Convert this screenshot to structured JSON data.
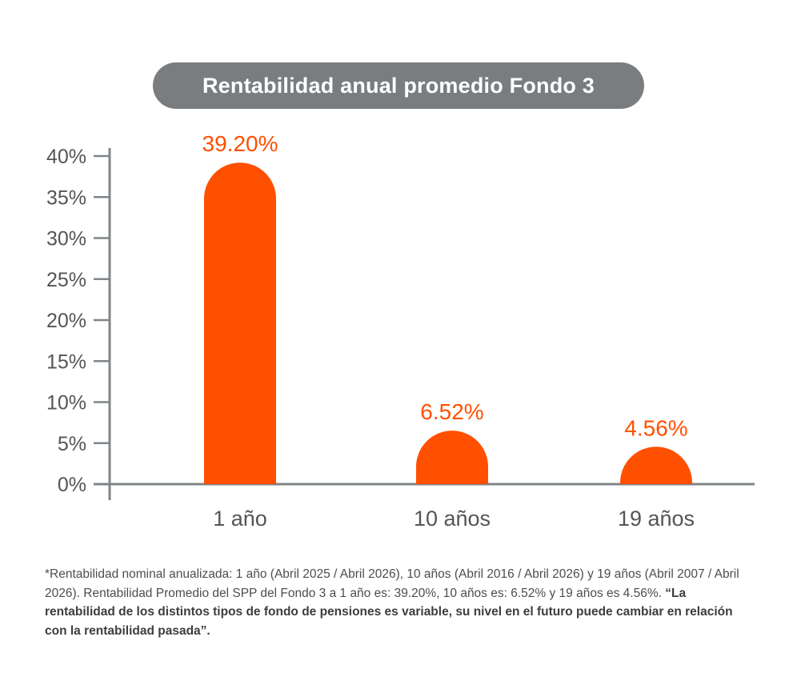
{
  "chart_data": {
    "type": "bar",
    "title": "Rentabilidad anual promedio Fondo 3",
    "categories": [
      "1 año",
      "10 años",
      "19 años"
    ],
    "values": [
      39.2,
      6.52,
      4.56
    ],
    "data_labels": [
      "39.20%",
      "6.52%",
      "4.56%"
    ],
    "yticks": [
      "0%",
      "5%",
      "10%",
      "15%",
      "20%",
      "25%",
      "30%",
      "35%",
      "40%"
    ],
    "ylim": [
      0,
      40
    ],
    "xlabel": "",
    "ylabel": "",
    "grid": false
  },
  "colors": {
    "bar": "#ff5000",
    "axis": "#808589",
    "title_bg": "#7a7d80",
    "label": "#ff5000"
  },
  "footnote": {
    "normal": "*Rentabilidad nominal anualizada: 1 año (Abril 2025 / Abril 2026), 10 años (Abril 2016 / Abril 2026) y 19 años (Abril 2007 / Abril 2026). Rentabilidad Promedio del SPP del Fondo 3 a 1 año es: 39.20%, 10 años es: 6.52% y 19 años es 4.56%.",
    "bold": "“La rentabilidad de los distintos tipos de fondo de pensiones es variable, su nivel en el futuro puede cambiar en relación con la rentabilidad pasada”."
  }
}
